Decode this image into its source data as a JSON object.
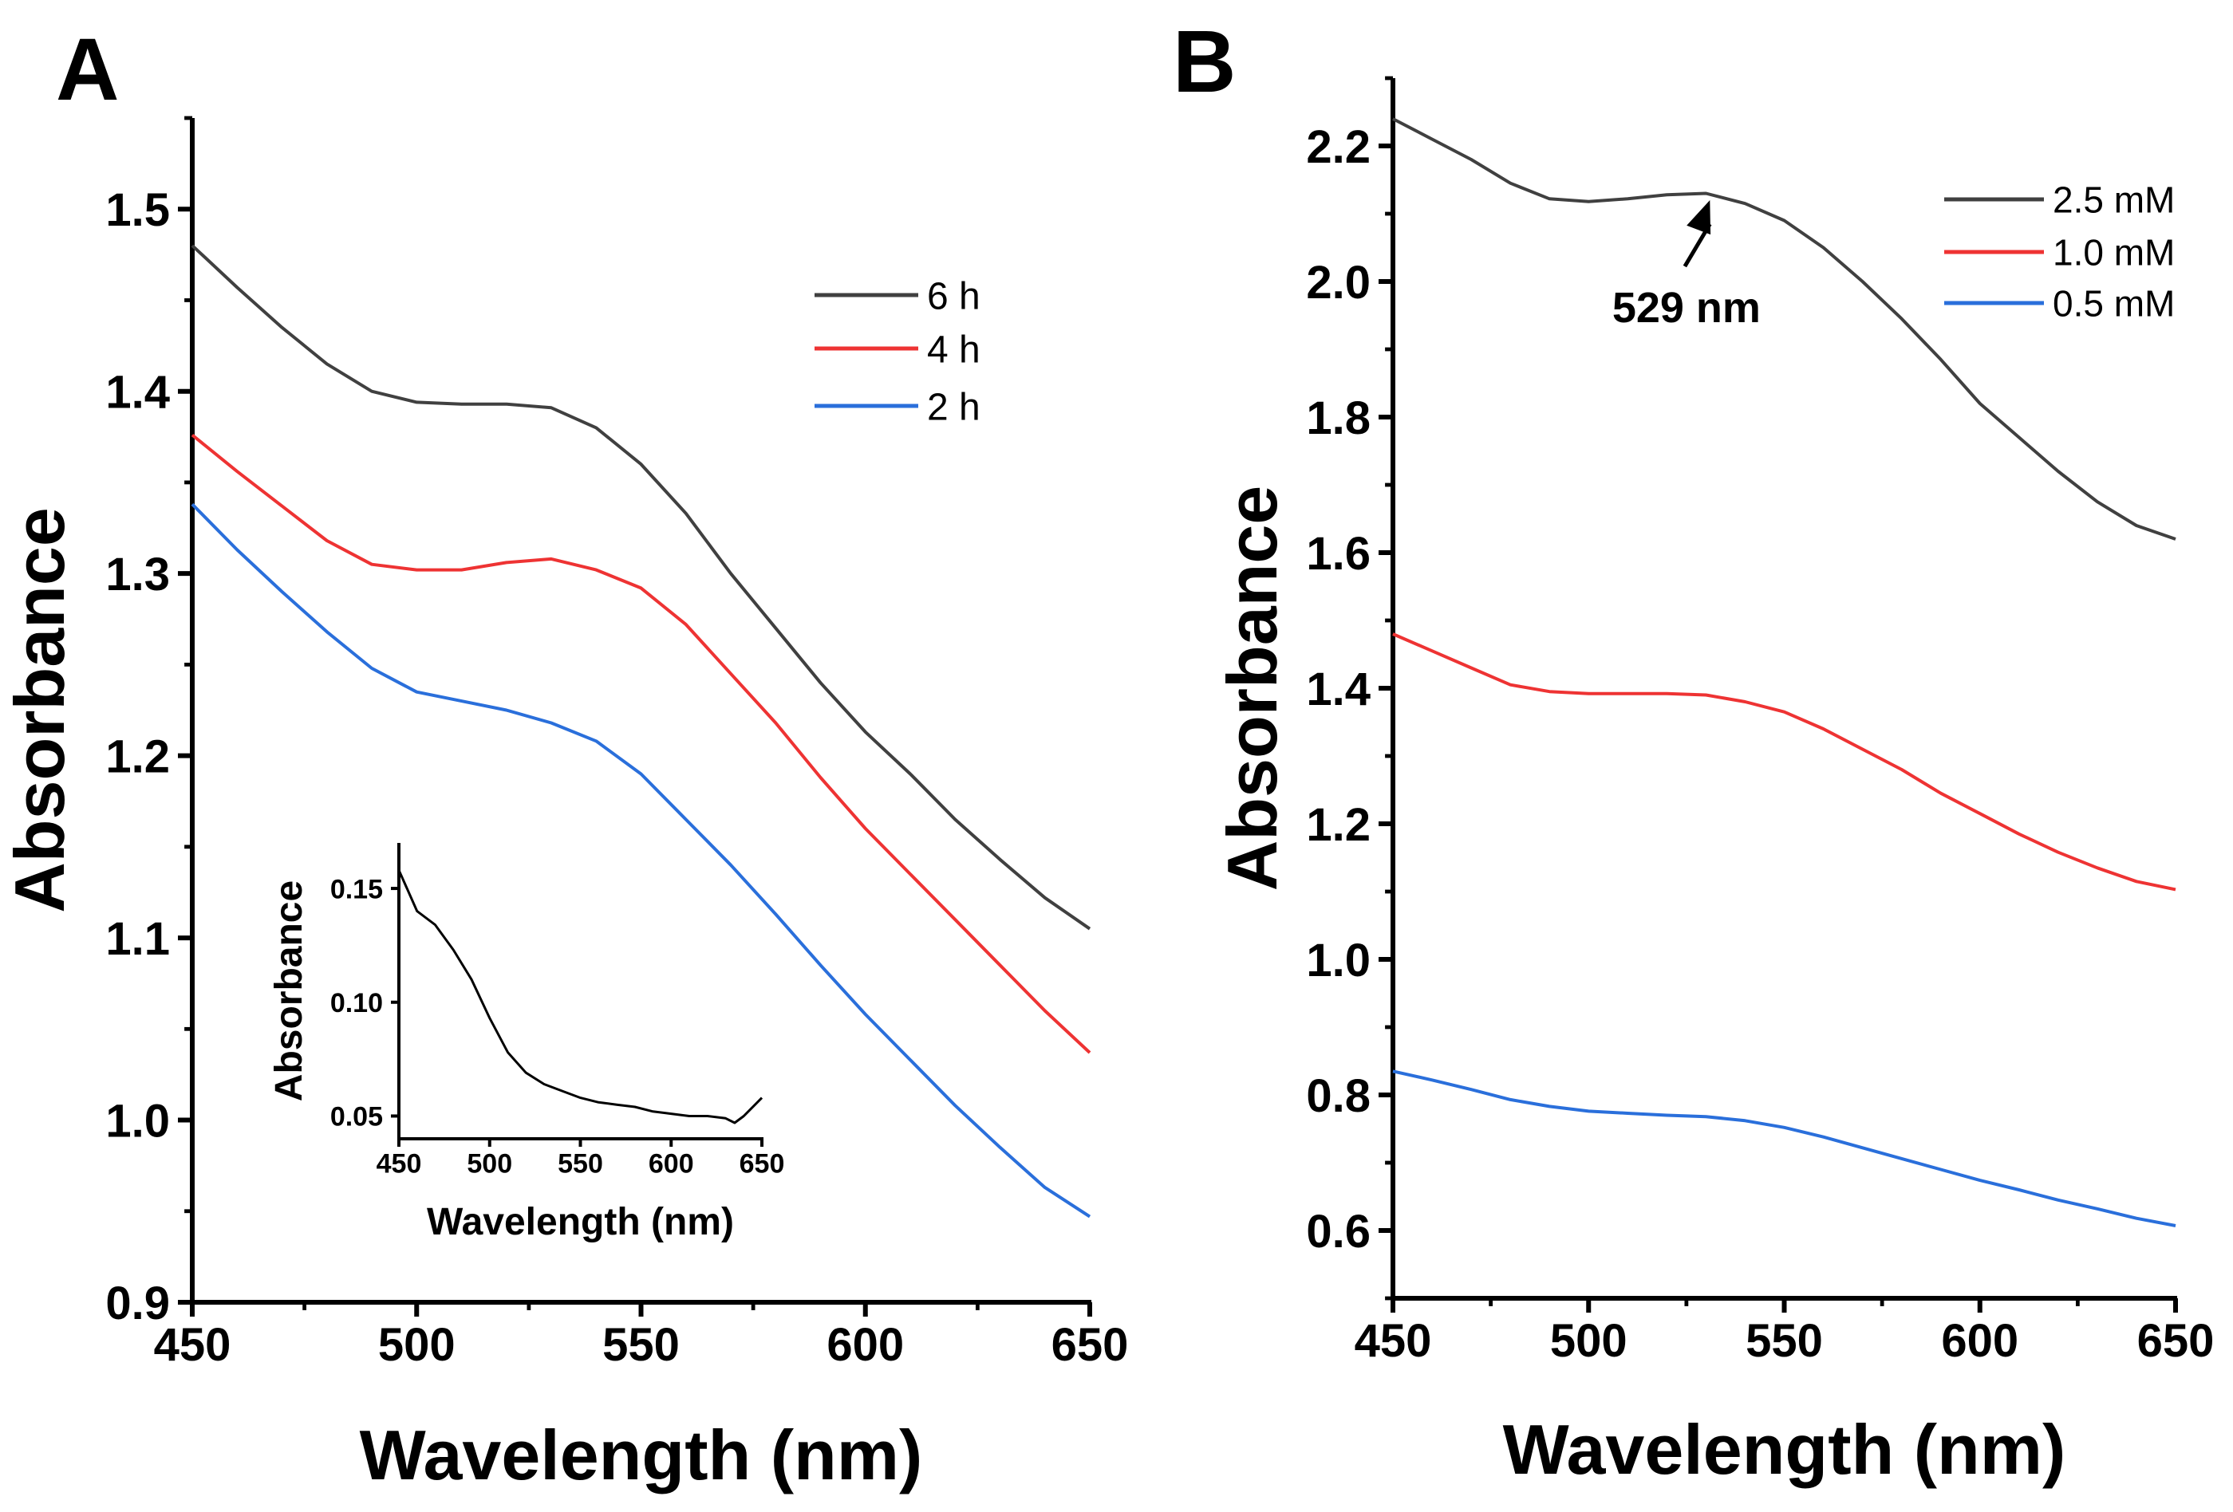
{
  "chart_data": [
    {
      "panel_label": "A",
      "type": "line",
      "xlabel": "Wavelength (nm)",
      "ylabel": "Absorbance",
      "xlim": [
        450,
        650
      ],
      "ylim": [
        0.9,
        1.55
      ],
      "xticks": [
        450,
        500,
        550,
        600,
        650
      ],
      "yticks": [
        0.9,
        1.0,
        1.1,
        1.2,
        1.3,
        1.4,
        1.5
      ],
      "xtick_labels": [
        "450",
        "500",
        "550",
        "600",
        "650"
      ],
      "ytick_labels": [
        "0.9",
        "1.0",
        "1.1",
        "1.2",
        "1.3",
        "1.4",
        "1.5"
      ],
      "grid": false,
      "legend_placement": "top-right",
      "x": [
        450,
        460,
        470,
        480,
        490,
        500,
        510,
        520,
        530,
        540,
        550,
        560,
        570,
        580,
        590,
        600,
        610,
        620,
        630,
        640,
        650
      ],
      "series": [
        {
          "name": "6 h",
          "color": "#404040",
          "values": [
            1.48,
            1.457,
            1.435,
            1.415,
            1.4,
            1.394,
            1.393,
            1.393,
            1.391,
            1.38,
            1.36,
            1.333,
            1.3,
            1.27,
            1.24,
            1.213,
            1.19,
            1.165,
            1.143,
            1.122,
            1.105
          ]
        },
        {
          "name": "4 h",
          "color": "#ee3333",
          "values": [
            1.376,
            1.356,
            1.337,
            1.318,
            1.305,
            1.302,
            1.302,
            1.306,
            1.308,
            1.302,
            1.292,
            1.272,
            1.245,
            1.218,
            1.188,
            1.16,
            1.135,
            1.11,
            1.085,
            1.06,
            1.037
          ]
        },
        {
          "name": "2 h",
          "color": "#2a6fdb",
          "values": [
            1.338,
            1.313,
            1.29,
            1.268,
            1.248,
            1.235,
            1.23,
            1.225,
            1.218,
            1.208,
            1.19,
            1.165,
            1.14,
            1.113,
            1.085,
            1.058,
            1.033,
            1.008,
            0.985,
            0.963,
            0.947
          ]
        }
      ],
      "inset": {
        "type": "line",
        "xlabel": "Wavelength (nm)",
        "ylabel": "Absorbance",
        "xlim": [
          450,
          650
        ],
        "ylim": [
          0.04,
          0.17
        ],
        "xticks": [
          450,
          500,
          550,
          600,
          650
        ],
        "yticks": [
          0.05,
          0.1,
          0.15
        ],
        "xtick_labels": [
          "450",
          "500",
          "550",
          "600",
          "650"
        ],
        "ytick_labels": [
          "0.05",
          "0.10",
          "0.15"
        ],
        "x": [
          450,
          460,
          470,
          480,
          490,
          500,
          510,
          520,
          530,
          540,
          550,
          560,
          570,
          580,
          590,
          600,
          610,
          620,
          630,
          635,
          640,
          650
        ],
        "series": [
          {
            "color": "#000000",
            "values": [
              0.158,
              0.14,
              0.134,
              0.123,
              0.11,
              0.093,
              0.078,
              0.069,
              0.064,
              0.061,
              0.058,
              0.056,
              0.055,
              0.054,
              0.052,
              0.051,
              0.05,
              0.05,
              0.049,
              0.047,
              0.05,
              0.058
            ]
          }
        ]
      }
    },
    {
      "panel_label": "B",
      "type": "line",
      "xlabel": "Wavelength (nm)",
      "ylabel": "Absorbance",
      "xlim": [
        450,
        650
      ],
      "ylim": [
        0.5,
        2.3
      ],
      "xticks": [
        450,
        500,
        550,
        600,
        650
      ],
      "yticks": [
        0.6,
        0.8,
        1.0,
        1.2,
        1.4,
        1.6,
        1.8,
        2.0,
        2.2
      ],
      "xtick_labels": [
        "450",
        "500",
        "550",
        "600",
        "650"
      ],
      "ytick_labels": [
        "0.6",
        "0.8",
        "1.0",
        "1.2",
        "1.4",
        "1.6",
        "1.8",
        "2.0",
        "2.2"
      ],
      "grid": false,
      "legend_placement": "top-right",
      "x": [
        450,
        460,
        470,
        480,
        490,
        500,
        510,
        520,
        530,
        540,
        550,
        560,
        570,
        580,
        590,
        600,
        610,
        620,
        630,
        640,
        650
      ],
      "series": [
        {
          "name": "2.5 mM",
          "color": "#404040",
          "values": [
            2.24,
            2.21,
            2.18,
            2.145,
            2.122,
            2.118,
            2.122,
            2.128,
            2.13,
            2.115,
            2.09,
            2.05,
            2.0,
            1.945,
            1.885,
            1.82,
            1.77,
            1.72,
            1.675,
            1.64,
            1.62
          ]
        },
        {
          "name": "1.0 mM",
          "color": "#ee3333",
          "values": [
            1.48,
            1.455,
            1.43,
            1.405,
            1.395,
            1.392,
            1.392,
            1.392,
            1.39,
            1.38,
            1.365,
            1.34,
            1.31,
            1.28,
            1.245,
            1.215,
            1.185,
            1.158,
            1.135,
            1.115,
            1.103
          ]
        },
        {
          "name": "0.5 mM",
          "color": "#2a6fdb",
          "values": [
            0.835,
            0.822,
            0.808,
            0.793,
            0.783,
            0.776,
            0.773,
            0.77,
            0.768,
            0.762,
            0.752,
            0.738,
            0.722,
            0.706,
            0.69,
            0.674,
            0.66,
            0.645,
            0.632,
            0.618,
            0.607
          ]
        }
      ],
      "annotations": [
        {
          "text": "529 nm",
          "points_to": [
            531,
            2.12
          ],
          "text_at": [
            525,
            1.94
          ]
        }
      ]
    }
  ]
}
